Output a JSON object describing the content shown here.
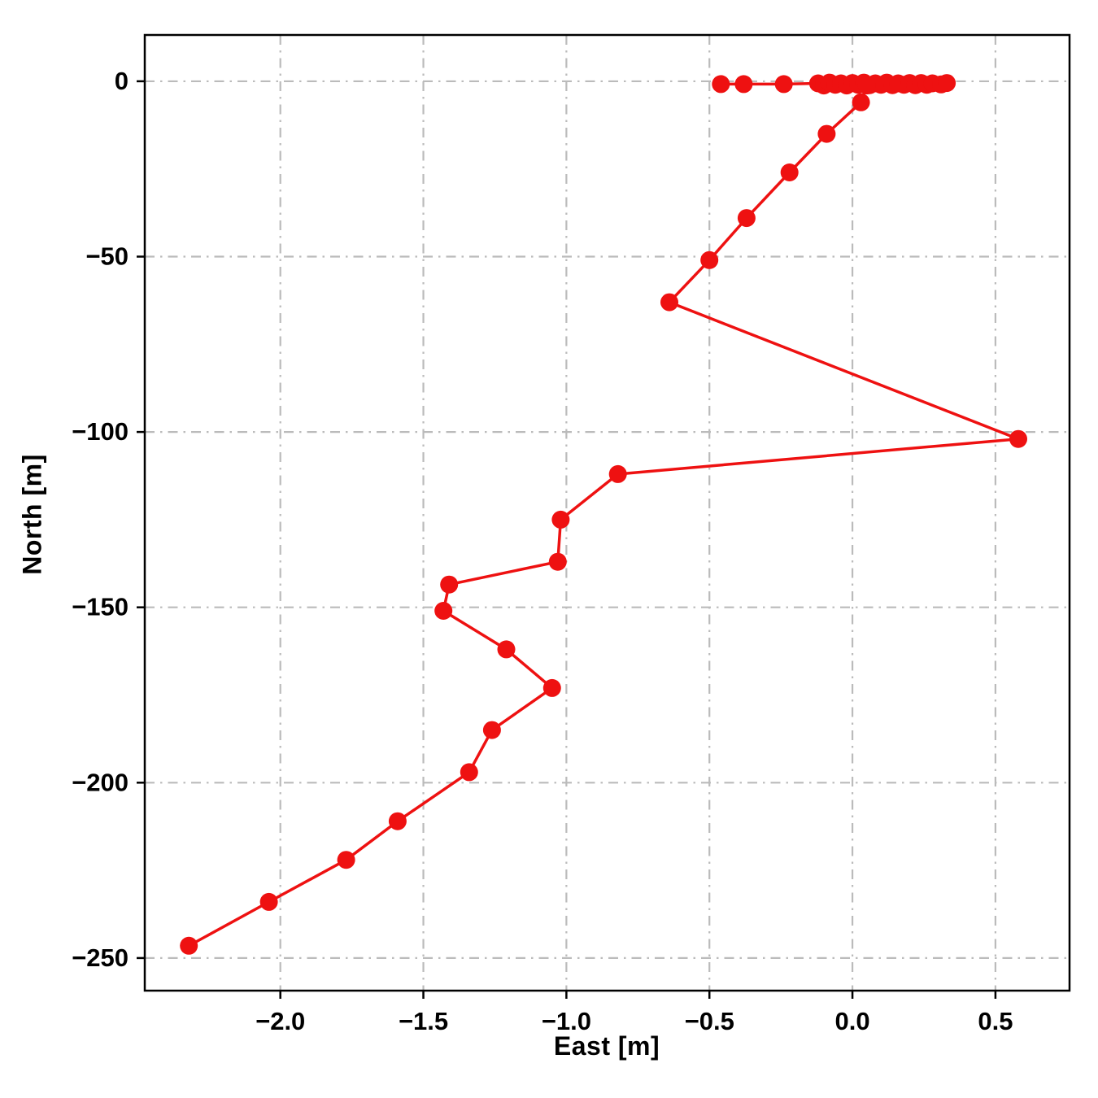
{
  "figure": {
    "background": "#ffffff"
  },
  "chart_data": {
    "type": "line",
    "title": "",
    "xlabel": "East [m]",
    "ylabel": "North [m]",
    "xlim": [
      -2.474,
      0.759
    ],
    "ylim": [
      -259.3,
      13.2
    ],
    "xticks": [
      -2.0,
      -1.5,
      -1.0,
      -0.5,
      0.0,
      0.5
    ],
    "yticks": [
      0,
      -50,
      -100,
      -150,
      -200,
      -250
    ],
    "xtick_labels": [
      "−2.0",
      "−1.5",
      "−1.0",
      "−0.5",
      "0.0",
      "0.5"
    ],
    "ytick_labels": [
      "0",
      "−50",
      "−100",
      "−150",
      "−200",
      "−250"
    ],
    "grid": true,
    "grid_style": "dash-dot",
    "grid_color": "#bbbbbb",
    "spine_color": "#000000",
    "legend": "none",
    "series": [
      {
        "name": "trajectory",
        "color": "#ee1111",
        "marker": "circle",
        "marker_radius": 11,
        "line_width": 3.5,
        "points": [
          [
            -0.46,
            -0.8
          ],
          [
            -0.38,
            -0.8
          ],
          [
            -0.24,
            -0.8
          ],
          [
            -0.12,
            -0.6
          ],
          [
            -0.1,
            -1.2
          ],
          [
            -0.08,
            -0.4
          ],
          [
            -0.06,
            -1.0
          ],
          [
            -0.04,
            -0.6
          ],
          [
            -0.02,
            -1.2
          ],
          [
            0.0,
            -0.5
          ],
          [
            0.02,
            -1.0
          ],
          [
            0.04,
            -0.4
          ],
          [
            0.06,
            -1.1
          ],
          [
            0.08,
            -0.6
          ],
          [
            0.1,
            -1.0
          ],
          [
            0.12,
            -0.4
          ],
          [
            0.14,
            -1.1
          ],
          [
            0.16,
            -0.6
          ],
          [
            0.18,
            -1.0
          ],
          [
            0.2,
            -0.5
          ],
          [
            0.22,
            -1.1
          ],
          [
            0.24,
            -0.5
          ],
          [
            0.26,
            -1.0
          ],
          [
            0.28,
            -0.6
          ],
          [
            0.31,
            -0.9
          ],
          [
            0.33,
            -0.5
          ],
          [
            0.05,
            -1.2
          ],
          [
            0.03,
            -6
          ],
          [
            -0.09,
            -15
          ],
          [
            -0.22,
            -26
          ],
          [
            -0.37,
            -39
          ],
          [
            -0.5,
            -51
          ],
          [
            -0.64,
            -63
          ],
          [
            0.58,
            -102
          ],
          [
            -0.82,
            -112
          ],
          [
            -1.02,
            -125
          ],
          [
            -1.03,
            -137
          ],
          [
            -1.41,
            -143.5
          ],
          [
            -1.43,
            -151
          ],
          [
            -1.21,
            -162
          ],
          [
            -1.05,
            -173
          ],
          [
            -1.26,
            -185
          ],
          [
            -1.34,
            -197
          ],
          [
            -1.59,
            -211
          ],
          [
            -1.77,
            -222
          ],
          [
            -2.04,
            -234
          ],
          [
            -2.32,
            -246.5
          ]
        ]
      }
    ]
  }
}
